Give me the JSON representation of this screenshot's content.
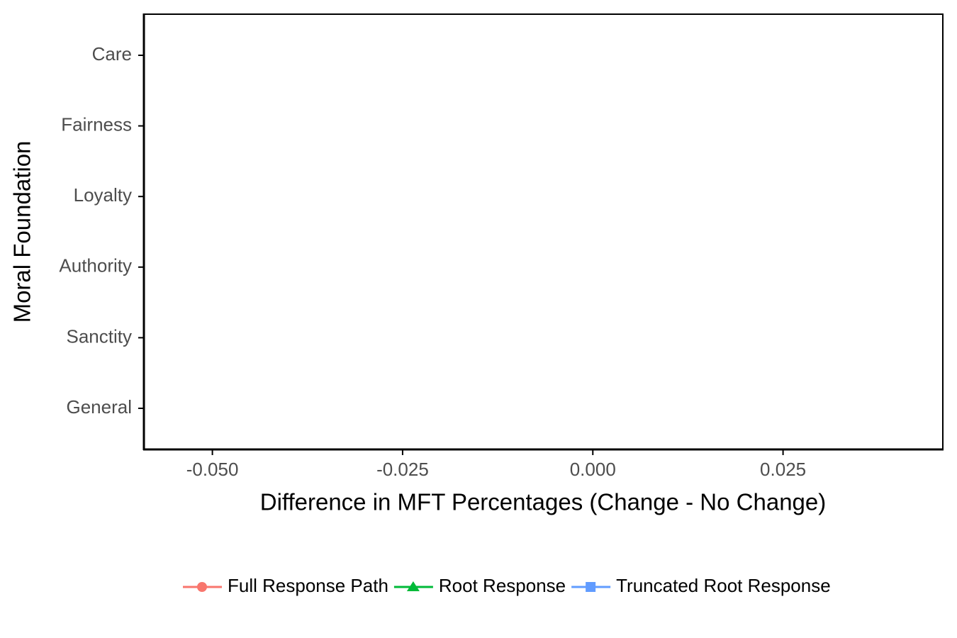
{
  "chart_data": {
    "type": "line",
    "xlabel": "Difference in MFT Percentages (Change - No Change)",
    "ylabel": "Moral Foundation",
    "categories": [
      "Care",
      "Fairness",
      "Loyalty",
      "Authority",
      "Sanctity",
      "General"
    ],
    "series": [
      {
        "name": "Full Response Path",
        "color": "#f8766d",
        "marker": "circle",
        "values": [
          null,
          null,
          null,
          null,
          null,
          null
        ]
      },
      {
        "name": "Root Response",
        "color": "#00ba38",
        "marker": "triangle",
        "values": [
          null,
          null,
          null,
          null,
          null,
          null
        ]
      },
      {
        "name": "Truncated Root Response",
        "color": "#619cff",
        "marker": "square",
        "values": [
          null,
          null,
          null,
          null,
          null,
          null
        ]
      }
    ],
    "xlim": [
      -0.059,
      0.046
    ],
    "xticks": [
      {
        "value": -0.05,
        "label": "-0.050"
      },
      {
        "value": -0.025,
        "label": "-0.025"
      },
      {
        "value": 0,
        "label": "0.000"
      },
      {
        "value": 0.025,
        "label": "0.025"
      }
    ],
    "grid": false,
    "legend": "bottom"
  }
}
